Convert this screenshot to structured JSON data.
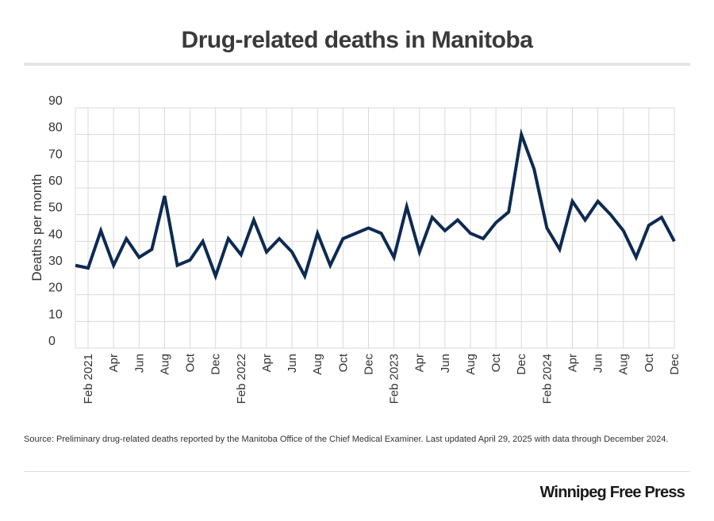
{
  "title": "Drug-related deaths in Manitoba",
  "source": "Source: Preliminary drug-related deaths reported by the Manitoba Office of the Chief Medical Examiner. Last updated April 29, 2025 with data through December 2024.",
  "brand": "Winnipeg Free Press",
  "colors": {
    "line": "#0d2a52",
    "grid": "#d9d9d9",
    "text": "#333333"
  },
  "chart_data": {
    "type": "line",
    "title": "Drug-related deaths in Manitoba",
    "ylabel": "Deaths per month",
    "ylim": [
      0,
      90
    ],
    "yticks": [
      0,
      10,
      20,
      30,
      40,
      50,
      60,
      70,
      80,
      90
    ],
    "grid": true,
    "x": [
      "Jan 2021",
      "Feb 2021",
      "Mar 2021",
      "Apr 2021",
      "May 2021",
      "Jun 2021",
      "Jul 2021",
      "Aug 2021",
      "Sep 2021",
      "Oct 2021",
      "Nov 2021",
      "Dec 2021",
      "Jan 2022",
      "Feb 2022",
      "Mar 2022",
      "Apr 2022",
      "May 2022",
      "Jun 2022",
      "Jul 2022",
      "Aug 2022",
      "Sep 2022",
      "Oct 2022",
      "Nov 2022",
      "Dec 2022",
      "Jan 2023",
      "Feb 2023",
      "Mar 2023",
      "Apr 2023",
      "May 2023",
      "Jun 2023",
      "Jul 2023",
      "Aug 2023",
      "Sep 2023",
      "Oct 2023",
      "Nov 2023",
      "Dec 2023",
      "Jan 2024",
      "Feb 2024",
      "Mar 2024",
      "Apr 2024",
      "May 2024",
      "Jun 2024",
      "Jul 2024",
      "Aug 2024",
      "Sep 2024",
      "Oct 2024",
      "Nov 2024",
      "Dec 2024"
    ],
    "xtick_labels": [
      {
        "index": 1,
        "label": "Feb 2021"
      },
      {
        "index": 3,
        "label": "Apr"
      },
      {
        "index": 5,
        "label": "Jun"
      },
      {
        "index": 7,
        "label": "Aug"
      },
      {
        "index": 9,
        "label": "Oct"
      },
      {
        "index": 11,
        "label": "Dec"
      },
      {
        "index": 13,
        "label": "Feb 2022"
      },
      {
        "index": 15,
        "label": "Apr"
      },
      {
        "index": 17,
        "label": "Jun"
      },
      {
        "index": 19,
        "label": "Aug"
      },
      {
        "index": 21,
        "label": "Oct"
      },
      {
        "index": 23,
        "label": "Dec"
      },
      {
        "index": 25,
        "label": "Feb 2023"
      },
      {
        "index": 27,
        "label": "Apr"
      },
      {
        "index": 29,
        "label": "Jun"
      },
      {
        "index": 31,
        "label": "Aug"
      },
      {
        "index": 33,
        "label": "Oct"
      },
      {
        "index": 35,
        "label": "Dec"
      },
      {
        "index": 37,
        "label": "Feb 2024"
      },
      {
        "index": 39,
        "label": "Apr"
      },
      {
        "index": 41,
        "label": "Jun"
      },
      {
        "index": 43,
        "label": "Aug"
      },
      {
        "index": 45,
        "label": "Oct"
      },
      {
        "index": 47,
        "label": "Dec"
      }
    ],
    "series": [
      {
        "values": [
          31,
          30,
          44,
          31,
          41,
          34,
          37,
          57,
          31,
          33,
          40,
          27,
          41,
          35,
          48,
          36,
          41,
          36,
          27,
          43,
          31,
          41,
          43,
          45,
          43,
          34,
          53,
          36,
          49,
          44,
          48,
          43,
          41,
          47,
          51,
          80,
          67,
          45,
          37,
          55,
          48,
          55,
          50,
          44,
          34,
          46,
          49,
          40
        ]
      }
    ]
  }
}
